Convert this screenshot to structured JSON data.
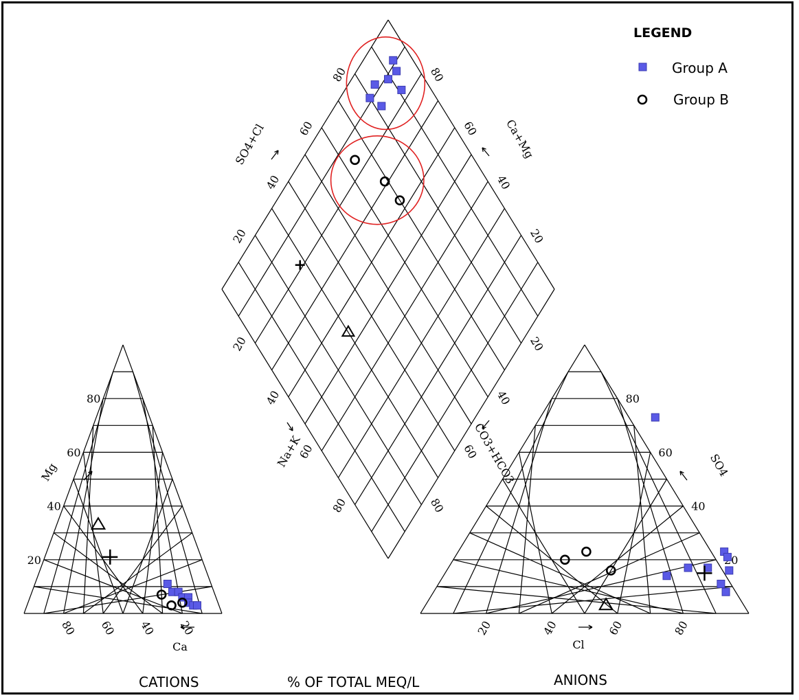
{
  "chart_data": {
    "type": "scatter",
    "subtype": "piper-diagram",
    "legend": {
      "title": "LEGEND",
      "position": "top-right",
      "entries": [
        {
          "label": "Group A",
          "marker": "blue-square",
          "color": "#5a5ae6"
        },
        {
          "label": "Group B",
          "marker": "open-circle",
          "color": "#000000"
        }
      ]
    },
    "cation_triangle": {
      "bottom_label": "Ca",
      "side_label": "Mg",
      "bottom_ticks": [
        "80",
        "60",
        "40",
        "20"
      ],
      "side_ticks": [
        "80",
        "60",
        "40",
        "20"
      ],
      "group_a": [
        {
          "ca": 22,
          "mg": 11
        },
        {
          "ca": 21,
          "mg": 8
        },
        {
          "ca": 18,
          "mg": 8
        },
        {
          "ca": 17,
          "mg": 6
        },
        {
          "ca": 14,
          "mg": 6
        },
        {
          "ca": 15,
          "mg": 4
        },
        {
          "ca": 13,
          "mg": 3
        },
        {
          "ca": 11,
          "mg": 3
        }
      ],
      "group_b": [
        {
          "ca": 27,
          "mg": 7
        },
        {
          "ca": 24,
          "mg": 3
        },
        {
          "ca": 18,
          "mg": 4
        }
      ],
      "other": [
        {
          "symbol": "triangle",
          "ca": 46,
          "mg": 33
        },
        {
          "symbol": "plus",
          "ca": 46,
          "mg": 21
        }
      ]
    },
    "anion_triangle": {
      "bottom_label": "Cl",
      "side_label": "SO4",
      "bottom_ticks": [
        "20",
        "40",
        "60",
        "80"
      ],
      "side_ticks": [
        "80",
        "60",
        "40",
        "20"
      ],
      "group_a": [
        {
          "cl": 35,
          "so4": 73
        },
        {
          "cl": 68,
          "so4": 14
        },
        {
          "cl": 73,
          "so4": 17
        },
        {
          "cl": 79,
          "so4": 17
        },
        {
          "cl": 81,
          "so4": 23
        },
        {
          "cl": 83,
          "so4": 21
        },
        {
          "cl": 86,
          "so4": 16
        },
        {
          "cl": 86,
          "so4": 11
        },
        {
          "cl": 89,
          "so4": 8
        }
      ],
      "group_b": [
        {
          "cl": 34,
          "so4": 20
        },
        {
          "cl": 39,
          "so4": 23
        },
        {
          "cl": 50,
          "so4": 16
        }
      ],
      "other": [
        {
          "symbol": "triangle",
          "cl": 55,
          "so4": 3
        },
        {
          "symbol": "plus",
          "cl": 79,
          "so4": 15
        }
      ]
    },
    "diamond": {
      "upper_left_label": "SO4+Cl",
      "upper_right_label": "Ca+Mg",
      "lower_left_label": "Na+K",
      "lower_right_label": "CO3+HCO3",
      "ticks": [
        "20",
        "40",
        "60",
        "80"
      ],
      "group_a": [
        {
          "so4_cl": 91,
          "ca_mg": 80
        },
        {
          "so4_cl": 86,
          "ca_mg": 82
        },
        {
          "so4_cl": 89,
          "ca_mg": 89
        },
        {
          "so4_cl": 92,
          "ca_mg": 84
        },
        {
          "so4_cl": 83,
          "ca_mg": 91
        },
        {
          "so4_cl": 88,
          "ca_mg": 93
        },
        {
          "so4_cl": 91,
          "ca_mg": 94
        }
      ],
      "group_b": [
        {
          "so4_cl": 71,
          "ca_mg": 69
        },
        {
          "so4_cl": 84,
          "ca_mg": 64
        },
        {
          "so4_cl": 63,
          "ca_mg": 70
        }
      ],
      "other": [
        {
          "symbol": "triangle",
          "so4_cl": 54,
          "ca_mg": 30
        },
        {
          "symbol": "plus",
          "so4_cl": 81,
          "ca_mg": 28
        }
      ]
    },
    "circled_groups": [
      "Group A",
      "Group B"
    ],
    "circle_color": "#e02020",
    "bottom_labels": {
      "left": "CATIONS",
      "center": "% OF TOTAL MEQ/L",
      "right": "ANIONS"
    },
    "grid": true
  }
}
